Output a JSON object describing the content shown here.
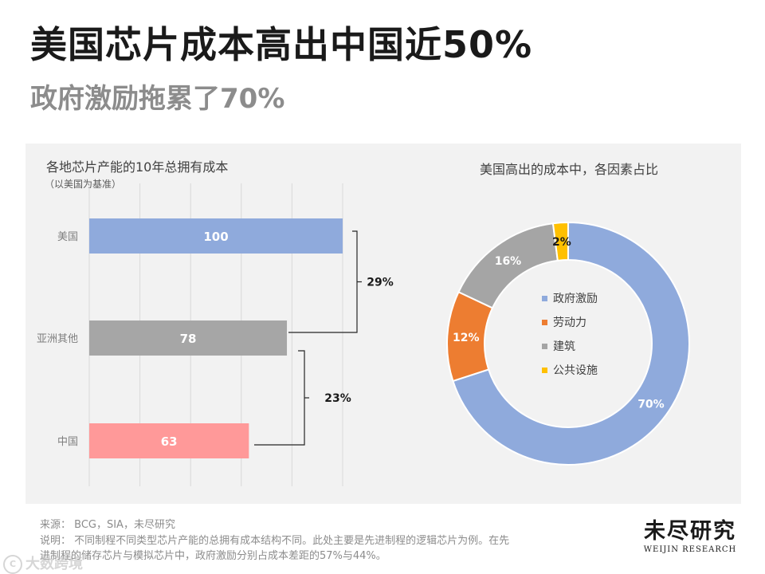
{
  "title": "美国芯片成本高出中国近50%",
  "subtitle": "政府激励拖累了70%",
  "chart_data": [
    {
      "type": "bar",
      "orientation": "horizontal",
      "title": "各地芯片产能的10年总拥有成本",
      "subtitle": "（以美国为基准）",
      "categories": [
        "美国",
        "亚洲其他",
        "中国"
      ],
      "values": [
        100,
        78,
        63
      ],
      "value_labels": [
        "100",
        "78",
        "63"
      ],
      "colors": [
        "#8faadc",
        "#a6a6a6",
        "#ff9999"
      ],
      "xlim": [
        0,
        100
      ],
      "grid": true,
      "annotations": [
        {
          "label": "29%",
          "from": "美国",
          "to": "亚洲其他"
        },
        {
          "label": "23%",
          "from": "亚洲其他",
          "to": "中国"
        }
      ]
    },
    {
      "type": "pie",
      "style": "donut",
      "title": "美国高出的成本中，各因素占比",
      "labels": [
        "政府激励",
        "劳动力",
        "建筑",
        "公共设施"
      ],
      "values": [
        70,
        12,
        16,
        2
      ],
      "value_labels": [
        "70%",
        "12%",
        "16%",
        "2%"
      ],
      "colors": [
        "#8faadc",
        "#ed7d31",
        "#a5a5a5",
        "#ffc000"
      ],
      "legend": "center"
    }
  ],
  "footer": {
    "source": "来源：  BCG，SIA，未尽研究",
    "note_line1": "说明：  不同制程不同类型芯片产能的总拥有成本结构不同。此处主要是先进制程的逻辑芯片为例。在先",
    "note_line2": "进制程的储存芯片与模拟芯片中，政府激励分别占成本差距的57%与44%。"
  },
  "logo": {
    "cn": "未尽研究",
    "en": "WEIJIN RESEARCH"
  },
  "watermark": "大数跨境"
}
